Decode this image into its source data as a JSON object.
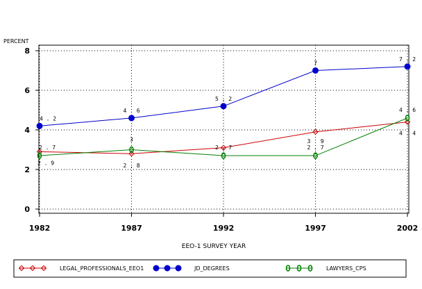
{
  "chart_data": {
    "type": "line",
    "ylabel": "PERCENT",
    "xlabel": "EEO-1 SURVEY YEAR",
    "x": [
      1982,
      1987,
      1992,
      1997,
      2002
    ],
    "x_tick_labels": [
      "1982",
      "1987",
      "1992",
      "1997",
      "2002"
    ],
    "ylim": [
      0,
      8
    ],
    "y_ticks": [
      0,
      2,
      4,
      6,
      8
    ],
    "y_tick_labels": [
      "0",
      "2",
      "4",
      "6",
      "8"
    ],
    "grid": true,
    "legend_position": "bottom",
    "series": [
      {
        "name": "LEGAL_PROFESSIONALS_EEO1",
        "color": "#cc0000",
        "marker": "diamond",
        "values": [
          2.9,
          2.8,
          3.1,
          3.9,
          4.4
        ],
        "labels": [
          "2.9",
          "2.8",
          "",
          "3.9",
          "4.4"
        ]
      },
      {
        "name": "JD_DEGREES",
        "color": "#0000cc",
        "marker": "dot",
        "values": [
          4.2,
          4.6,
          5.2,
          7.0,
          7.2
        ],
        "labels": [
          "4.2",
          "4.6",
          "5.2",
          "7",
          "7.2"
        ]
      },
      {
        "name": "LAWYERS_CPS",
        "color": "#008000",
        "marker": "zero",
        "values": [
          2.7,
          3.0,
          2.7,
          2.7,
          4.6
        ],
        "labels": [
          "2.7",
          "3",
          "2.7",
          "2.7",
          "4.6"
        ]
      }
    ]
  }
}
